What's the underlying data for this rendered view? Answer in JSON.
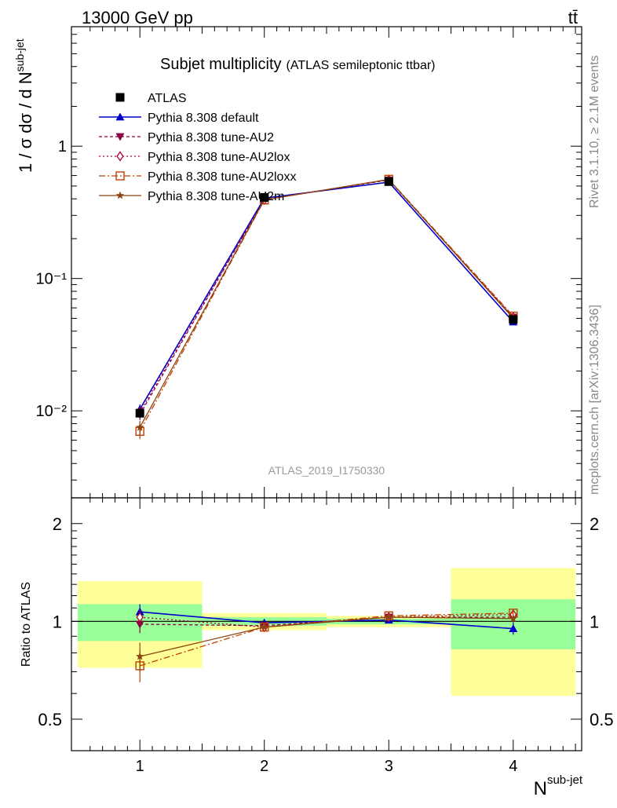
{
  "header": {
    "energy": "13000 GeV pp",
    "process": "tt̄"
  },
  "side_text": {
    "rivet": "Rivet 3.1.10, ≥ 2.1M events",
    "mcplots": "mcplots.cern.ch [arXiv:1306.3436]"
  },
  "plot": {
    "title_main": "Subjet multiplicity",
    "title_sub": "(ATLAS semileptonic ttbar)",
    "analysis_label": "ATLAS_2019_I1750330",
    "ylabel_upper_base": "1 / σ dσ / d N",
    "ylabel_upper_sup": "sub-jet",
    "ylabel_lower": "Ratio to ATLAS",
    "xlabel_base": "N",
    "xlabel_sup": "sub-jet"
  },
  "axis_ticks": {
    "x": [
      "1",
      "2",
      "3",
      "4"
    ],
    "upper_y": [
      "1",
      "10⁻¹",
      "10⁻²"
    ],
    "lower_y": [
      "2",
      "1",
      "0.5"
    ]
  },
  "colors": {
    "data": "#000000",
    "default": "#0000cc",
    "au2": "#8b0045",
    "au2lox": "#aa0033",
    "au2loxx": "#c04000",
    "au2m": "#8b4513",
    "band_green": "#99ff99",
    "band_yellow": "#ffff99"
  },
  "chart_data": {
    "type": "line",
    "x": [
      1,
      2,
      3,
      4
    ],
    "x_bin_edges": [
      0.5,
      1.5,
      2.5,
      3.5,
      4.5
    ],
    "xlim": [
      0.45,
      4.55
    ],
    "upper": {
      "yscale": "log",
      "ylim": [
        0.0022,
        8.0
      ],
      "data": {
        "name": "ATLAS",
        "values": [
          0.0096,
          0.41,
          0.54,
          0.049
        ],
        "errors": [
          0.0008,
          0.01,
          0.01,
          0.004
        ]
      },
      "series": [
        {
          "name": "Pythia 8.308 default",
          "key": "default",
          "values": [
            0.0103,
            0.405,
            0.535,
            0.047
          ],
          "errors": [
            0.0009,
            0.008,
            0.008,
            0.002
          ]
        },
        {
          "name": "Pythia 8.308 tune-AU2",
          "key": "au2",
          "values": [
            0.0094,
            0.395,
            0.555,
            0.051
          ],
          "errors": [
            0.0009,
            0.008,
            0.008,
            0.002
          ]
        },
        {
          "name": "Pythia 8.308 tune-AU2lox",
          "key": "au2lox",
          "values": [
            0.0098,
            0.393,
            0.558,
            0.051
          ],
          "errors": [
            0.0009,
            0.008,
            0.008,
            0.002
          ]
        },
        {
          "name": "Pythia 8.308 tune-AU2loxx",
          "key": "au2loxx",
          "values": [
            0.007,
            0.392,
            0.562,
            0.052
          ],
          "errors": [
            0.0009,
            0.008,
            0.008,
            0.002
          ]
        },
        {
          "name": "Pythia 8.308 tune-AU2m",
          "key": "au2m",
          "values": [
            0.0075,
            0.394,
            0.56,
            0.05
          ],
          "errors": [
            0.0009,
            0.008,
            0.008,
            0.002
          ]
        }
      ]
    },
    "ratio": {
      "yscale": "log",
      "ylim": [
        0.4,
        2.4
      ],
      "bands": [
        {
          "inner": [
            0.87,
            1.13
          ],
          "outer": [
            0.72,
            1.33
          ]
        },
        {
          "inner": [
            0.97,
            1.03
          ],
          "outer": [
            0.94,
            1.06
          ]
        },
        {
          "inner": [
            0.98,
            1.02
          ],
          "outer": [
            0.96,
            1.04
          ]
        },
        {
          "inner": [
            0.82,
            1.17
          ],
          "outer": [
            0.59,
            1.46
          ]
        }
      ],
      "series": [
        {
          "key": "default",
          "values": [
            1.07,
            0.99,
            1.01,
            0.95
          ],
          "errors": [
            0.06,
            0.01,
            0.01,
            0.04
          ]
        },
        {
          "key": "au2",
          "values": [
            0.98,
            0.97,
            1.03,
            1.03
          ],
          "errors": [
            0.06,
            0.01,
            0.01,
            0.03
          ]
        },
        {
          "key": "au2lox",
          "values": [
            1.03,
            0.96,
            1.03,
            1.05
          ],
          "errors": [
            0.06,
            0.01,
            0.01,
            0.03
          ]
        },
        {
          "key": "au2loxx",
          "values": [
            0.73,
            0.96,
            1.04,
            1.06
          ],
          "errors": [
            0.08,
            0.01,
            0.01,
            0.03
          ]
        },
        {
          "key": "au2m",
          "values": [
            0.78,
            0.96,
            1.03,
            1.02
          ],
          "errors": [
            0.08,
            0.01,
            0.01,
            0.03
          ]
        }
      ]
    },
    "legend_position": "top-left"
  }
}
